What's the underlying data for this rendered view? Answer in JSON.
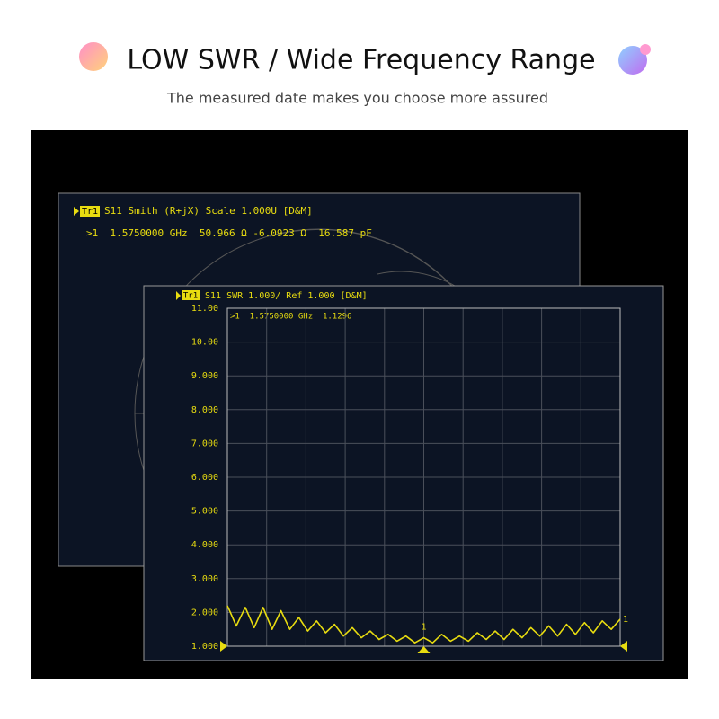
{
  "header": {
    "title": "LOW SWR /  Wide Frequency Range",
    "subtitle": "The measured date makes you choose more assured"
  },
  "smith_panel": {
    "trace": "Tr1",
    "title": "S11 Smith (R+jX) Scale 1.000U [D&M]",
    "marker_readout": ">1  1.5750000 GHz  50.966 Ω -6.0923 Ω  16.587 pF"
  },
  "chart_data": {
    "type": "line",
    "trace": "Tr1",
    "title": "S11 SWR 1.000/ Ref 1.000 [D&M]",
    "marker_readout": ">1  1.5750000 GHz  1.1296",
    "marker_label": "1",
    "ylim": [
      1,
      11
    ],
    "yticks": [
      {
        "value": 1,
        "label": "1.000"
      },
      {
        "value": 2,
        "label": "2.000"
      },
      {
        "value": 3,
        "label": "3.000"
      },
      {
        "value": 4,
        "label": "4.000"
      },
      {
        "value": 5,
        "label": "5.000"
      },
      {
        "value": 6,
        "label": "6.000"
      },
      {
        "value": 7,
        "label": "7.000"
      },
      {
        "value": 8,
        "label": "8.000"
      },
      {
        "value": 9,
        "label": "9.000"
      },
      {
        "value": 10,
        "label": "10.00"
      },
      {
        "value": 11,
        "label": "11.00"
      }
    ],
    "grid": true,
    "color": "#e8dc10",
    "values": [
      2.2,
      1.6,
      2.15,
      1.55,
      2.15,
      1.5,
      2.05,
      1.5,
      1.85,
      1.45,
      1.75,
      1.4,
      1.65,
      1.3,
      1.55,
      1.25,
      1.45,
      1.2,
      1.35,
      1.15,
      1.3,
      1.1,
      1.25,
      1.1,
      1.35,
      1.15,
      1.3,
      1.15,
      1.4,
      1.2,
      1.45,
      1.2,
      1.5,
      1.25,
      1.55,
      1.3,
      1.6,
      1.3,
      1.65,
      1.35,
      1.7,
      1.4,
      1.75,
      1.5,
      1.8
    ]
  }
}
